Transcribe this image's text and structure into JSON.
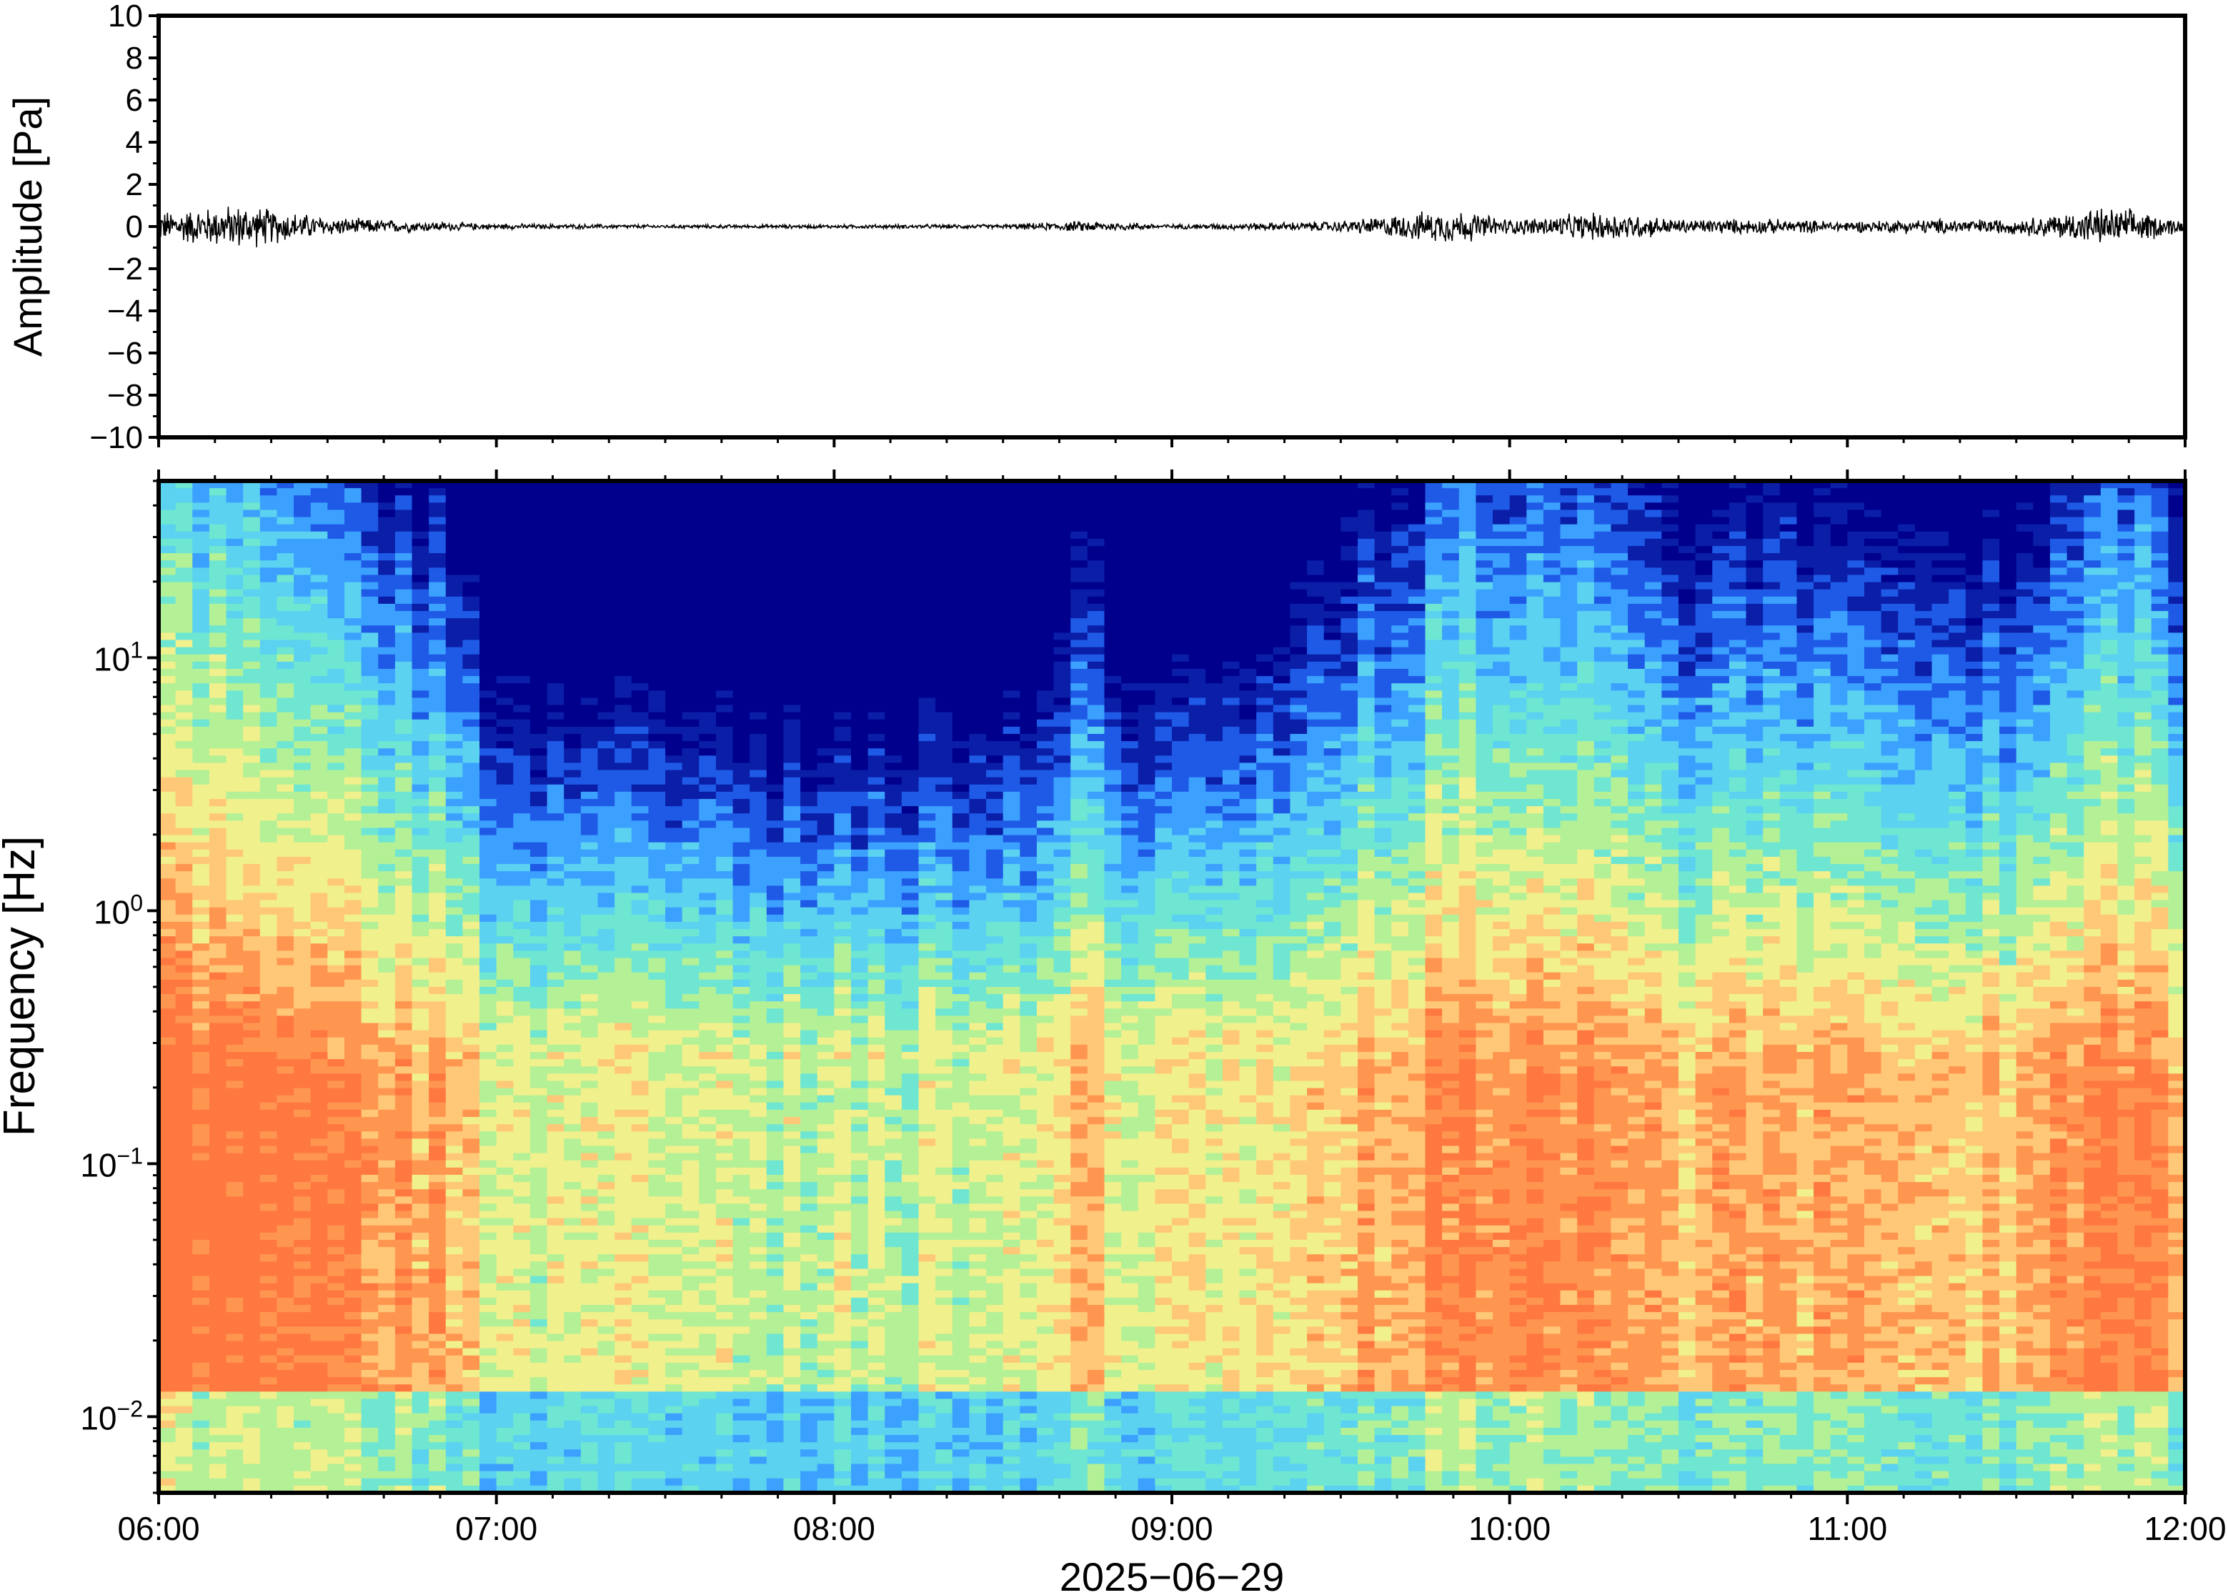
{
  "chart_data": [
    {
      "type": "line",
      "ylabel": "Amplitude [Pa]",
      "ylim": [
        -10,
        10
      ],
      "yticks": [
        10,
        8,
        6,
        4,
        2,
        0,
        -2,
        -4,
        -6,
        -8,
        -10
      ],
      "ytick_labels": [
        "10",
        "8",
        "6",
        "4",
        "2",
        "0",
        "−2",
        "−4",
        "−6",
        "−8",
        "−10"
      ],
      "xlim": [
        "06:00",
        "12:00"
      ],
      "grid": false,
      "series": [
        {
          "x_hours": [
            6.0,
            6.25,
            6.5,
            6.75,
            7.0,
            7.5,
            8.0,
            8.5,
            8.75,
            9.0,
            9.25,
            9.5,
            9.75,
            9.85,
            10.0,
            10.15,
            10.3,
            10.5,
            10.75,
            11.0,
            11.25,
            11.5,
            11.75,
            11.85,
            12.0
          ],
          "envelope_pa": [
            0.8,
            1.2,
            0.5,
            0.3,
            0.15,
            0.1,
            0.1,
            0.12,
            0.3,
            0.12,
            0.2,
            0.3,
            0.8,
            0.9,
            0.4,
            0.6,
            0.8,
            0.4,
            0.4,
            0.3,
            0.4,
            0.4,
            1.0,
            0.9,
            0.3
          ]
        }
      ]
    },
    {
      "type": "heatmap",
      "xlabel": "2025−06−29",
      "ylabel": "Frequency [Hz]",
      "yscale": "log",
      "ylim": [
        0.005,
        50
      ],
      "yticks": [
        0.01,
        0.1,
        1,
        10
      ],
      "ytick_labels": [
        {
          "base": "10",
          "exp": "−2"
        },
        {
          "base": "10",
          "exp": "−1"
        },
        {
          "base": "10",
          "exp": "0"
        },
        {
          "base": "10",
          "exp": "1"
        }
      ],
      "xticks": [
        "06:00",
        "07:00",
        "08:00",
        "09:00",
        "10:00",
        "11:00",
        "12:00"
      ],
      "xlim": [
        "06:00",
        "12:00"
      ],
      "colormap": "jet",
      "colors": [
        "#00008c",
        "#0a1ea8",
        "#1e5ae6",
        "#3ca0ff",
        "#5ad2f0",
        "#6ee6d2",
        "#b4f096",
        "#f0f08c",
        "#ffc878",
        "#ff9650",
        "#ff7840"
      ],
      "activity_profile": {
        "x_hours": [
          6.0,
          6.3,
          6.6,
          6.9,
          7.0,
          7.5,
          8.0,
          8.5,
          8.65,
          8.75,
          8.85,
          9.0,
          9.2,
          9.5,
          9.7,
          9.85,
          10.0,
          10.2,
          10.35,
          10.5,
          10.75,
          11.0,
          11.25,
          11.5,
          11.7,
          11.85,
          12.0
        ],
        "activity": [
          0.95,
          0.9,
          0.7,
          0.55,
          0.25,
          0.2,
          0.15,
          0.2,
          0.25,
          0.55,
          0.3,
          0.25,
          0.3,
          0.55,
          0.65,
          0.85,
          0.7,
          0.8,
          0.75,
          0.55,
          0.6,
          0.55,
          0.6,
          0.5,
          0.7,
          0.8,
          0.6
        ]
      }
    }
  ]
}
